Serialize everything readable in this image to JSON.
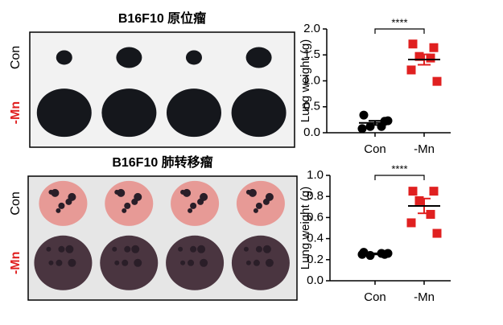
{
  "photos": [
    {
      "title": "B16F10 原位瘤",
      "rows": [
        "Con",
        "-Mn"
      ]
    },
    {
      "title": "B16F10 肺转移瘤",
      "rows": [
        "Con",
        "-Mn"
      ]
    }
  ],
  "chart_data": [
    {
      "type": "dotplot",
      "ylabel": "Lung weight (g)",
      "categories": [
        "Con",
        "-Mn"
      ],
      "colors": [
        "#000000",
        "#e02020"
      ],
      "points": [
        [
          0.34,
          0.22,
          0.12,
          0.12,
          0.08,
          0.23
        ],
        [
          1.71,
          1.64,
          1.47,
          1.44,
          1.21,
          0.99
        ]
      ],
      "means": [
        0.19,
        1.41
      ],
      "sem": [
        0.04,
        0.1
      ],
      "significance": "****",
      "ylim": [
        0,
        2
      ],
      "yticks": [
        {
          "value": 0,
          "label": "0.0"
        },
        {
          "value": 0.5,
          "label": "0.5"
        },
        {
          "value": 1,
          "label": "1.0"
        },
        {
          "value": 1.5,
          "label": "1.5"
        },
        {
          "value": 2,
          "label": "2.0"
        }
      ]
    },
    {
      "type": "dotplot",
      "ylabel": "Lung weight (g)",
      "categories": [
        "Con",
        "-Mn"
      ],
      "colors": [
        "#000000",
        "#e02020"
      ],
      "points": [
        [
          0.27,
          0.25,
          0.24,
          0.26,
          0.25,
          0.26
        ],
        [
          0.85,
          0.85,
          0.76,
          0.63,
          0.55,
          0.45
        ]
      ],
      "means": [
        0.255,
        0.71
      ],
      "sem": [
        0.005,
        0.07
      ],
      "significance": "****",
      "ylim": [
        0,
        1
      ],
      "yticks": [
        {
          "value": 0,
          "label": "0.0"
        },
        {
          "value": 0.2,
          "label": "0.2"
        },
        {
          "value": 0.4,
          "label": "0.4"
        },
        {
          "value": 0.6,
          "label": "0.6"
        },
        {
          "value": 0.8,
          "label": "0.8"
        },
        {
          "value": 1,
          "label": "1.0"
        }
      ]
    }
  ]
}
